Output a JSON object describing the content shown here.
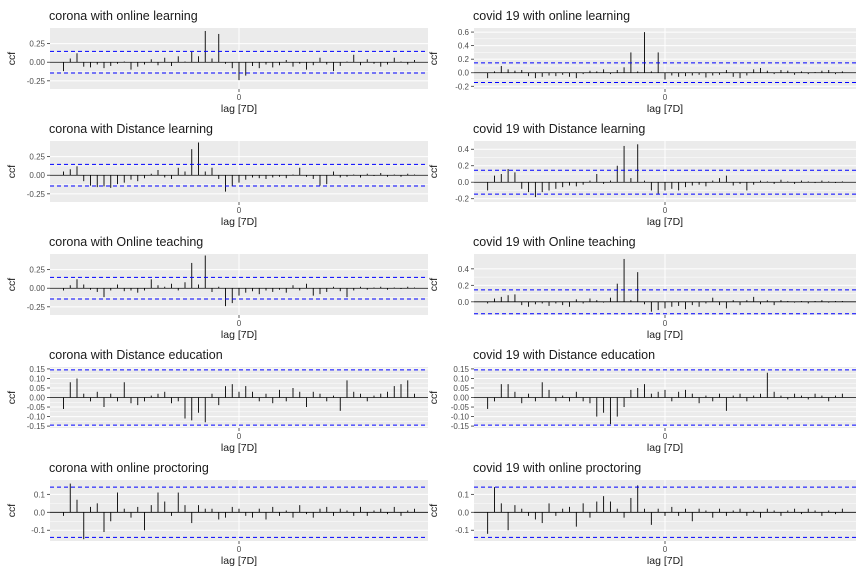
{
  "figure": {
    "background": "#ffffff",
    "panel_background": "#ebebeb",
    "grid_color": "#ffffff",
    "bar_color": "#000000",
    "confidence_color": "#0000ff",
    "y_axis_label": "ccf",
    "x_axis_label": "lag [7D]",
    "x_tick_label": "0"
  },
  "chart_data": [
    {
      "type": "bar",
      "title": "corona with online learning",
      "xlabel": "lag [7D]",
      "ylabel": "ccf",
      "x": [
        -26,
        -25,
        -24,
        -23,
        -22,
        -21,
        -20,
        -19,
        -18,
        -17,
        -16,
        -15,
        -14,
        -13,
        -12,
        -11,
        -10,
        -9,
        -8,
        -7,
        -6,
        -5,
        -4,
        -3,
        -2,
        -1,
        0,
        1,
        2,
        3,
        4,
        5,
        6,
        7,
        8,
        9,
        10,
        11,
        12,
        13,
        14,
        15,
        16,
        17,
        18,
        19,
        20,
        21,
        22,
        23,
        24,
        25,
        26
      ],
      "values": [
        -0.12,
        0.05,
        0.12,
        -0.06,
        -0.07,
        -0.03,
        -0.08,
        -0.05,
        -0.02,
        0.01,
        -0.1,
        -0.06,
        -0.03,
        0.04,
        -0.04,
        0.06,
        -0.05,
        0.08,
        0.01,
        0.14,
        0.08,
        0.42,
        0.05,
        0.38,
        -0.02,
        -0.08,
        -0.24,
        -0.18,
        -0.05,
        -0.08,
        -0.03,
        -0.07,
        -0.04,
        0.03,
        -0.06,
        -0.02,
        -0.1,
        -0.04,
        0.06,
        -0.03,
        -0.12,
        -0.05,
        0.01,
        0.1,
        -0.04,
        0.04,
        -0.02,
        -0.06,
        -0.03,
        0.06,
        0.01,
        -0.03,
        0.03
      ],
      "ylim": [
        -0.36,
        0.46
      ],
      "yticks": [
        -0.25,
        0.0,
        0.25
      ],
      "ytick_labels": [
        "-0.25",
        "0.00",
        "0.25"
      ],
      "ci": 0.145
    },
    {
      "type": "bar",
      "title": "covid 19 with online learning",
      "xlabel": "lag [7D]",
      "ylabel": "ccf",
      "x": [
        -26,
        -25,
        -24,
        -23,
        -22,
        -21,
        -20,
        -19,
        -18,
        -17,
        -16,
        -15,
        -14,
        -13,
        -12,
        -11,
        -10,
        -9,
        -8,
        -7,
        -6,
        -5,
        -4,
        -3,
        -2,
        -1,
        0,
        1,
        2,
        3,
        4,
        5,
        6,
        7,
        8,
        9,
        10,
        11,
        12,
        13,
        14,
        15,
        16,
        17,
        18,
        19,
        20,
        21,
        22,
        23,
        24,
        25,
        26
      ],
      "values": [
        -0.08,
        0.02,
        0.1,
        0.05,
        0.03,
        0.04,
        -0.05,
        -0.08,
        -0.06,
        -0.04,
        -0.05,
        -0.03,
        -0.06,
        -0.08,
        -0.02,
        0.03,
        0.02,
        0.05,
        -0.02,
        0.04,
        0.08,
        0.3,
        0.02,
        0.6,
        0.02,
        0.3,
        -0.1,
        -0.04,
        -0.06,
        -0.05,
        -0.04,
        -0.03,
        -0.07,
        -0.04,
        -0.03,
        0.04,
        -0.06,
        -0.08,
        -0.04,
        0.05,
        0.07,
        0.03,
        -0.02,
        0.04,
        0.03,
        -0.03,
        0.02,
        -0.02,
        0.01,
        0.03,
        0.04,
        -0.02,
        0.02
      ],
      "ylim": [
        -0.24,
        0.66
      ],
      "yticks": [
        -0.2,
        0.0,
        0.2,
        0.4,
        0.6
      ],
      "ytick_labels": [
        "-0.2",
        "0.0",
        "0.2",
        "0.4",
        "0.6"
      ],
      "ci": 0.145
    },
    {
      "type": "bar",
      "title": "corona with Distance learning",
      "xlabel": "lag [7D]",
      "ylabel": "ccf",
      "x": [
        -26,
        -25,
        -24,
        -23,
        -22,
        -21,
        -20,
        -19,
        -18,
        -17,
        -16,
        -15,
        -14,
        -13,
        -12,
        -11,
        -10,
        -9,
        -8,
        -7,
        -6,
        -5,
        -4,
        -3,
        -2,
        -1,
        0,
        1,
        2,
        3,
        4,
        5,
        6,
        7,
        8,
        9,
        10,
        11,
        12,
        13,
        14,
        15,
        16,
        17,
        18,
        19,
        20,
        21,
        22,
        23,
        24,
        25,
        26
      ],
      "values": [
        0.05,
        0.08,
        0.12,
        -0.08,
        -0.14,
        -0.16,
        -0.15,
        -0.17,
        -0.12,
        -0.1,
        -0.06,
        -0.08,
        -0.04,
        0.02,
        0.07,
        -0.03,
        -0.05,
        0.1,
        0.05,
        0.35,
        0.44,
        0.05,
        0.1,
        -0.05,
        -0.22,
        -0.15,
        -0.1,
        -0.06,
        -0.03,
        -0.04,
        -0.05,
        -0.03,
        -0.02,
        -0.04,
        0.01,
        0.1,
        -0.02,
        -0.05,
        -0.14,
        -0.12,
        0.05,
        -0.03,
        -0.02,
        0.01,
        -0.03,
        0.02,
        -0.01,
        0.03,
        -0.02,
        0.01,
        -0.02,
        0.02,
        0.01
      ],
      "ylim": [
        -0.36,
        0.46
      ],
      "yticks": [
        -0.25,
        0.0,
        0.25
      ],
      "ytick_labels": [
        "-0.25",
        "0.00",
        "0.25"
      ],
      "ci": 0.145
    },
    {
      "type": "bar",
      "title": "covid 19 with Distance learning",
      "xlabel": "lag [7D]",
      "ylabel": "ccf",
      "x": [
        -26,
        -25,
        -24,
        -23,
        -22,
        -21,
        -20,
        -19,
        -18,
        -17,
        -16,
        -15,
        -14,
        -13,
        -12,
        -11,
        -10,
        -9,
        -8,
        -7,
        -6,
        -5,
        -4,
        -3,
        -2,
        -1,
        0,
        1,
        2,
        3,
        4,
        5,
        6,
        7,
        8,
        9,
        10,
        11,
        12,
        13,
        14,
        15,
        16,
        17,
        18,
        19,
        20,
        21,
        22,
        23,
        24,
        25,
        26
      ],
      "values": [
        -0.1,
        0.08,
        0.1,
        0.16,
        0.12,
        -0.08,
        -0.12,
        -0.18,
        -0.12,
        -0.1,
        -0.08,
        -0.06,
        -0.04,
        -0.05,
        -0.03,
        0.02,
        0.1,
        -0.02,
        0.02,
        0.2,
        0.44,
        0.05,
        0.46,
        0.02,
        -0.1,
        -0.14,
        -0.1,
        -0.08,
        -0.1,
        -0.06,
        -0.04,
        -0.03,
        -0.05,
        0.02,
        0.05,
        0.08,
        -0.04,
        -0.02,
        -0.1,
        -0.03,
        0.02,
        0.01,
        -0.02,
        0.03,
        0.01,
        -0.02,
        0.02,
        0.01,
        -0.01,
        0.02,
        0.01,
        -0.01,
        0.01
      ],
      "ylim": [
        -0.24,
        0.5
      ],
      "yticks": [
        -0.2,
        0.0,
        0.2,
        0.4
      ],
      "ytick_labels": [
        "-0.2",
        "0.0",
        "0.2",
        "0.4"
      ],
      "ci": 0.145
    },
    {
      "type": "bar",
      "title": "corona with Online teaching",
      "xlabel": "lag [7D]",
      "ylabel": "ccf",
      "x": [
        -26,
        -25,
        -24,
        -23,
        -22,
        -21,
        -20,
        -19,
        -18,
        -17,
        -16,
        -15,
        -14,
        -13,
        -12,
        -11,
        -10,
        -9,
        -8,
        -7,
        -6,
        -5,
        -4,
        -3,
        -2,
        -1,
        0,
        1,
        2,
        3,
        4,
        5,
        6,
        7,
        8,
        9,
        10,
        11,
        12,
        13,
        14,
        15,
        16,
        17,
        18,
        19,
        20,
        21,
        22,
        23,
        24,
        25,
        26
      ],
      "values": [
        -0.03,
        0.04,
        0.12,
        0.05,
        -0.02,
        -0.05,
        -0.12,
        -0.03,
        0.05,
        -0.04,
        -0.03,
        -0.06,
        -0.03,
        0.12,
        0.04,
        0.02,
        0.06,
        -0.03,
        0.08,
        0.34,
        0.05,
        0.44,
        -0.05,
        0.02,
        -0.24,
        -0.2,
        -0.1,
        -0.06,
        -0.04,
        -0.08,
        -0.03,
        -0.05,
        -0.02,
        -0.06,
        0.04,
        -0.03,
        0.06,
        -0.1,
        -0.08,
        -0.05,
        0.02,
        -0.04,
        -0.12,
        -0.03,
        0.02,
        -0.02,
        0.01,
        0.02,
        -0.02,
        0.01,
        -0.01,
        0.02,
        0.01
      ],
      "ylim": [
        -0.36,
        0.46
      ],
      "yticks": [
        -0.25,
        0.0,
        0.25
      ],
      "ytick_labels": [
        "-0.25",
        "0.00",
        "0.25"
      ],
      "ci": 0.145
    },
    {
      "type": "bar",
      "title": "covid 19 with Online teaching",
      "xlabel": "lag [7D]",
      "ylabel": "ccf",
      "x": [
        -26,
        -25,
        -24,
        -23,
        -22,
        -21,
        -20,
        -19,
        -18,
        -17,
        -16,
        -15,
        -14,
        -13,
        -12,
        -11,
        -10,
        -9,
        -8,
        -7,
        -6,
        -5,
        -4,
        -3,
        -2,
        -1,
        0,
        1,
        2,
        3,
        4,
        5,
        6,
        7,
        8,
        9,
        10,
        11,
        12,
        13,
        14,
        15,
        16,
        17,
        18,
        19,
        20,
        21,
        22,
        23,
        24,
        25,
        26
      ],
      "values": [
        -0.02,
        0.04,
        0.06,
        0.08,
        0.09,
        -0.04,
        -0.06,
        -0.03,
        -0.02,
        -0.05,
        -0.02,
        -0.04,
        -0.06,
        0.03,
        -0.02,
        0.04,
        0.02,
        -0.01,
        0.05,
        0.22,
        0.52,
        0.02,
        0.36,
        -0.03,
        -0.12,
        -0.1,
        -0.08,
        -0.06,
        -0.05,
        -0.09,
        -0.04,
        -0.06,
        -0.02,
        0.05,
        -0.04,
        -0.08,
        0.02,
        -0.04,
        0.02,
        0.06,
        -0.03,
        0.02,
        -0.04,
        0.02,
        0.01,
        -0.01,
        0.01,
        -0.02,
        0.01,
        0.02,
        -0.01,
        0.01,
        0.01
      ],
      "ylim": [
        -0.16,
        0.58
      ],
      "yticks": [
        0.0,
        0.2,
        0.4
      ],
      "ytick_labels": [
        "0.0",
        "0.2",
        "0.4"
      ],
      "ci": 0.145
    },
    {
      "type": "bar",
      "title": "corona with Distance education",
      "xlabel": "lag [7D]",
      "ylabel": "ccf",
      "x": [
        -26,
        -25,
        -24,
        -23,
        -22,
        -21,
        -20,
        -19,
        -18,
        -17,
        -16,
        -15,
        -14,
        -13,
        -12,
        -11,
        -10,
        -9,
        -8,
        -7,
        -6,
        -5,
        -4,
        -3,
        -2,
        -1,
        0,
        1,
        2,
        3,
        4,
        5,
        6,
        7,
        8,
        9,
        10,
        11,
        12,
        13,
        14,
        15,
        16,
        17,
        18,
        19,
        20,
        21,
        22,
        23,
        24,
        25,
        26
      ],
      "values": [
        -0.06,
        0.08,
        0.1,
        0.02,
        -0.02,
        0.03,
        -0.05,
        0.02,
        -0.02,
        0.08,
        -0.03,
        -0.04,
        -0.02,
        0.01,
        0.02,
        0.03,
        -0.03,
        -0.02,
        -0.11,
        -0.12,
        -0.08,
        -0.13,
        0.02,
        -0.04,
        0.06,
        0.07,
        0.03,
        0.06,
        0.03,
        -0.02,
        0.02,
        -0.03,
        0.04,
        -0.02,
        0.05,
        0.03,
        -0.05,
        0.03,
        0.02,
        -0.02,
        0.01,
        -0.07,
        0.09,
        0.03,
        0.02,
        -0.02,
        0.01,
        0.02,
        0.03,
        0.06,
        0.07,
        0.09,
        0.02
      ],
      "ylim": [
        -0.16,
        0.16
      ],
      "yticks": [
        -0.15,
        -0.1,
        -0.05,
        0.0,
        0.05,
        0.1,
        0.15
      ],
      "ytick_labels": [
        "-0.15",
        "-0.10",
        "-0.05",
        "0.00",
        "0.05",
        "0.10",
        "0.15"
      ],
      "ci": 0.145
    },
    {
      "type": "bar",
      "title": "covid 19 with Distance education",
      "xlabel": "lag [7D]",
      "ylabel": "ccf",
      "x": [
        -26,
        -25,
        -24,
        -23,
        -22,
        -21,
        -20,
        -19,
        -18,
        -17,
        -16,
        -15,
        -14,
        -13,
        -12,
        -11,
        -10,
        -9,
        -8,
        -7,
        -6,
        -5,
        -4,
        -3,
        -2,
        -1,
        0,
        1,
        2,
        3,
        4,
        5,
        6,
        7,
        8,
        9,
        10,
        11,
        12,
        13,
        14,
        15,
        16,
        17,
        18,
        19,
        20,
        21,
        22,
        23,
        24,
        25,
        26
      ],
      "values": [
        -0.06,
        -0.02,
        0.07,
        0.07,
        0.03,
        -0.03,
        0.02,
        -0.02,
        0.08,
        0.04,
        -0.02,
        0.01,
        -0.02,
        0.03,
        -0.02,
        -0.03,
        -0.1,
        -0.08,
        -0.14,
        -0.1,
        -0.05,
        0.04,
        0.05,
        0.07,
        0.02,
        0.03,
        0.04,
        -0.02,
        0.03,
        0.04,
        0.02,
        -0.03,
        0.01,
        -0.02,
        0.02,
        -0.07,
        0.01,
        0.02,
        -0.02,
        0.01,
        0.02,
        0.13,
        0.03,
        0.01,
        -0.01,
        0.02,
        0.01,
        -0.01,
        0.02,
        0.01,
        -0.02,
        0.01,
        0.02
      ],
      "ylim": [
        -0.16,
        0.16
      ],
      "yticks": [
        -0.15,
        -0.1,
        -0.05,
        0.0,
        0.05,
        0.1,
        0.15
      ],
      "ytick_labels": [
        "-0.15",
        "-0.10",
        "-0.05",
        "0.00",
        "0.05",
        "0.10",
        "0.15"
      ],
      "ci": 0.145
    },
    {
      "type": "bar",
      "title": "corona with online proctoring",
      "xlabel": "lag [7D]",
      "ylabel": "ccf",
      "x": [
        -26,
        -25,
        -24,
        -23,
        -22,
        -21,
        -20,
        -19,
        -18,
        -17,
        -16,
        -15,
        -14,
        -13,
        -12,
        -11,
        -10,
        -9,
        -8,
        -7,
        -6,
        -5,
        -4,
        -3,
        -2,
        -1,
        0,
        1,
        2,
        3,
        4,
        5,
        6,
        7,
        8,
        9,
        10,
        11,
        12,
        13,
        14,
        15,
        16,
        17,
        18,
        19,
        20,
        21,
        22,
        23,
        24,
        25,
        26
      ],
      "values": [
        -0.02,
        0.16,
        0.07,
        -0.15,
        0.03,
        0.05,
        -0.11,
        -0.05,
        0.11,
        0.02,
        -0.03,
        0.03,
        -0.1,
        0.04,
        0.11,
        0.06,
        -0.02,
        0.11,
        0.04,
        -0.06,
        0.04,
        0.02,
        0.02,
        -0.04,
        -0.03,
        0.03,
        0.02,
        -0.02,
        -0.03,
        0.02,
        -0.04,
        0.03,
        -0.02,
        0.01,
        -0.03,
        0.04,
        -0.01,
        -0.03,
        0.02,
        0.03,
        -0.02,
        0.02,
        0.01,
        -0.02,
        0.03,
        -0.02,
        0.01,
        0.02,
        -0.01,
        0.03,
        -0.02,
        0.01,
        0.02
      ],
      "ylim": [
        -0.16,
        0.18
      ],
      "yticks": [
        -0.1,
        0.0,
        0.1
      ],
      "ytick_labels": [
        "-0.1",
        "0.0",
        "0.1"
      ],
      "ci": 0.14
    },
    {
      "type": "bar",
      "title": "covid 19 with online proctoring",
      "xlabel": "lag [7D]",
      "ylabel": "ccf",
      "x": [
        -26,
        -25,
        -24,
        -23,
        -22,
        -21,
        -20,
        -19,
        -18,
        -17,
        -16,
        -15,
        -14,
        -13,
        -12,
        -11,
        -10,
        -9,
        -8,
        -7,
        -6,
        -5,
        -4,
        -3,
        -2,
        -1,
        0,
        1,
        2,
        3,
        4,
        5,
        6,
        7,
        8,
        9,
        10,
        11,
        12,
        13,
        14,
        15,
        16,
        17,
        18,
        19,
        20,
        21,
        22,
        23,
        24,
        25,
        26
      ],
      "values": [
        -0.12,
        0.14,
        0.05,
        -0.1,
        0.04,
        0.02,
        -0.02,
        -0.04,
        -0.06,
        0.05,
        -0.02,
        0.02,
        0.03,
        -0.08,
        0.05,
        -0.03,
        0.06,
        0.09,
        0.06,
        0.02,
        -0.03,
        0.08,
        0.15,
        0.02,
        -0.07,
        0.02,
        -0.02,
        0.03,
        -0.02,
        0.02,
        -0.05,
        0.02,
        0.01,
        -0.03,
        0.02,
        -0.02,
        0.01,
        0.02,
        -0.02,
        0.01,
        -0.03,
        0.02,
        0.01,
        -0.02,
        0.01,
        0.02,
        -0.01,
        0.02,
        0.01,
        -0.02,
        0.01,
        -0.01,
        0.02
      ],
      "ylim": [
        -0.16,
        0.18
      ],
      "yticks": [
        -0.1,
        0.0,
        0.1
      ],
      "ytick_labels": [
        "-0.1",
        "0.0",
        "0.1"
      ],
      "ci": 0.14
    }
  ]
}
